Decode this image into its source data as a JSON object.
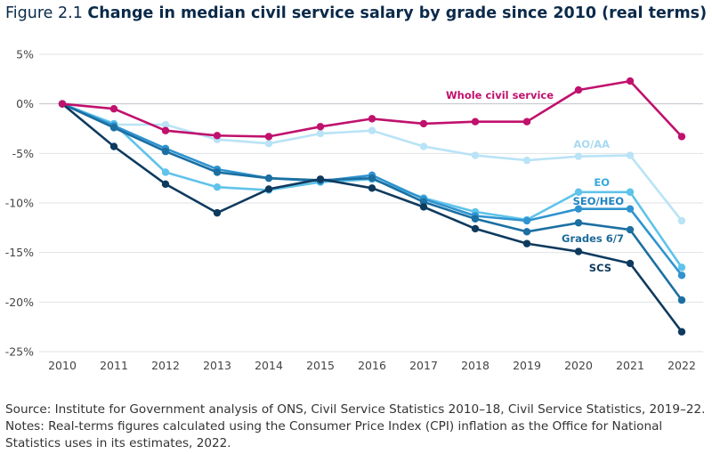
{
  "title_prefix": "Figure 2.1",
  "title": "Change in median civil service salary by grade since 2010 (real terms)",
  "source": "Source: Institute for Government analysis of ONS, Civil Service Statistics 2010–18, Civil Service Statistics, 2019–22. Notes: Real-terms figures calculated using the Consumer Price Index (CPI) inflation as the Office for National Statistics uses in its estimates, 2022.",
  "chart_data": {
    "type": "line",
    "x": [
      "2010",
      "2011",
      "2012",
      "2013",
      "2014",
      "2015",
      "2016",
      "2017",
      "2018",
      "2019",
      "2020",
      "2021",
      "2022"
    ],
    "ylim": [
      -25,
      5
    ],
    "yticks": [
      5,
      0,
      -5,
      -10,
      -15,
      -20,
      -25
    ],
    "ytick_labels": [
      "5%",
      "0%",
      "-5%",
      "-10%",
      "-15%",
      "-20%",
      "-25%"
    ],
    "grid": "horizontal",
    "series": [
      {
        "name": "AO/AA",
        "color": "#b9e3f6",
        "label_color": "#a9d9f0",
        "values": [
          0,
          -2.1,
          -2.1,
          -3.6,
          -4.0,
          -3.0,
          -2.7,
          -4.3,
          -5.2,
          -5.7,
          -5.3,
          -5.2,
          -11.8
        ]
      },
      {
        "name": "EO",
        "color": "#5fc3ea",
        "label_color": "#36a9dc",
        "values": [
          0,
          -2.0,
          -6.9,
          -8.4,
          -8.7,
          -7.9,
          -7.6,
          -9.5,
          -10.9,
          -11.7,
          -8.9,
          -8.9,
          -16.5
        ]
      },
      {
        "name": "SEO/HEO",
        "color": "#2f93cf",
        "label_color": "#1f84c4",
        "values": [
          0,
          -2.2,
          -4.5,
          -6.6,
          -7.5,
          -7.8,
          -7.2,
          -9.6,
          -11.3,
          -11.8,
          -10.6,
          -10.6,
          -17.3
        ]
      },
      {
        "name": "Grades 6/7",
        "color": "#1b6fa1",
        "label_color": "#1d6a98",
        "values": [
          0,
          -2.4,
          -4.8,
          -6.9,
          -7.5,
          -7.7,
          -7.5,
          -9.9,
          -11.6,
          -12.9,
          -12.0,
          -12.7,
          -19.8
        ]
      },
      {
        "name": "SCS",
        "color": "#0e3a5e",
        "label_color": "#0e3a5e",
        "values": [
          0,
          -4.3,
          -8.1,
          -11.0,
          -8.6,
          -7.6,
          -8.5,
          -10.4,
          -12.6,
          -14.1,
          -14.9,
          -16.1,
          -23.0
        ]
      },
      {
        "name": "Whole civil service",
        "color": "#c0116d",
        "label_color": "#c0116d",
        "values": [
          0,
          -0.5,
          -2.7,
          -3.2,
          -3.3,
          -2.3,
          -1.5,
          -2.0,
          -1.8,
          -1.8,
          1.4,
          2.3,
          -3.3
        ]
      }
    ]
  }
}
